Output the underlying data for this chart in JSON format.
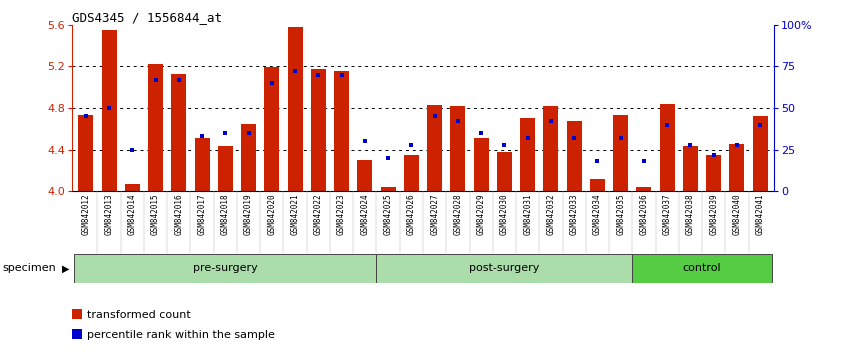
{
  "title": "GDS4345 / 1556844_at",
  "samples": [
    "GSM842012",
    "GSM842013",
    "GSM842014",
    "GSM842015",
    "GSM842016",
    "GSM842017",
    "GSM842018",
    "GSM842019",
    "GSM842020",
    "GSM842021",
    "GSM842022",
    "GSM842023",
    "GSM842024",
    "GSM842025",
    "GSM842026",
    "GSM842027",
    "GSM842028",
    "GSM842029",
    "GSM842030",
    "GSM842031",
    "GSM842032",
    "GSM842033",
    "GSM842034",
    "GSM842035",
    "GSM842036",
    "GSM842037",
    "GSM842038",
    "GSM842039",
    "GSM842040",
    "GSM842041"
  ],
  "bar_values": [
    4.73,
    5.55,
    4.07,
    5.22,
    5.13,
    4.51,
    4.43,
    4.65,
    5.19,
    5.58,
    5.17,
    5.16,
    4.3,
    4.04,
    4.35,
    4.83,
    4.82,
    4.51,
    4.38,
    4.7,
    4.82,
    4.67,
    4.12,
    4.73,
    4.04,
    4.84,
    4.43,
    4.35,
    4.45,
    4.72
  ],
  "percentile_values": [
    45,
    50,
    25,
    67,
    67,
    33,
    35,
    35,
    65,
    72,
    70,
    70,
    30,
    20,
    28,
    45,
    42,
    35,
    28,
    32,
    42,
    32,
    18,
    32,
    18,
    40,
    28,
    22,
    28,
    40
  ],
  "ylim": [
    4.0,
    5.6
  ],
  "y_ticks_left": [
    4.0,
    4.4,
    4.8,
    5.2,
    5.6
  ],
  "right_ytick_pcts": [
    0,
    25,
    50,
    75,
    100
  ],
  "bar_color": "#CC2200",
  "percentile_color": "#0000CC",
  "base": 4.0,
  "percentile_max": 100,
  "bar_width": 0.65,
  "group_defs": [
    {
      "label": "pre-surgery",
      "start": 0,
      "end": 12,
      "color": "#aaddaa"
    },
    {
      "label": "post-surgery",
      "start": 13,
      "end": 23,
      "color": "#aaddaa"
    },
    {
      "label": "control",
      "start": 24,
      "end": 29,
      "color": "#55cc44"
    }
  ],
  "tick_bg_color": "#cccccc",
  "border_color": "#333333"
}
